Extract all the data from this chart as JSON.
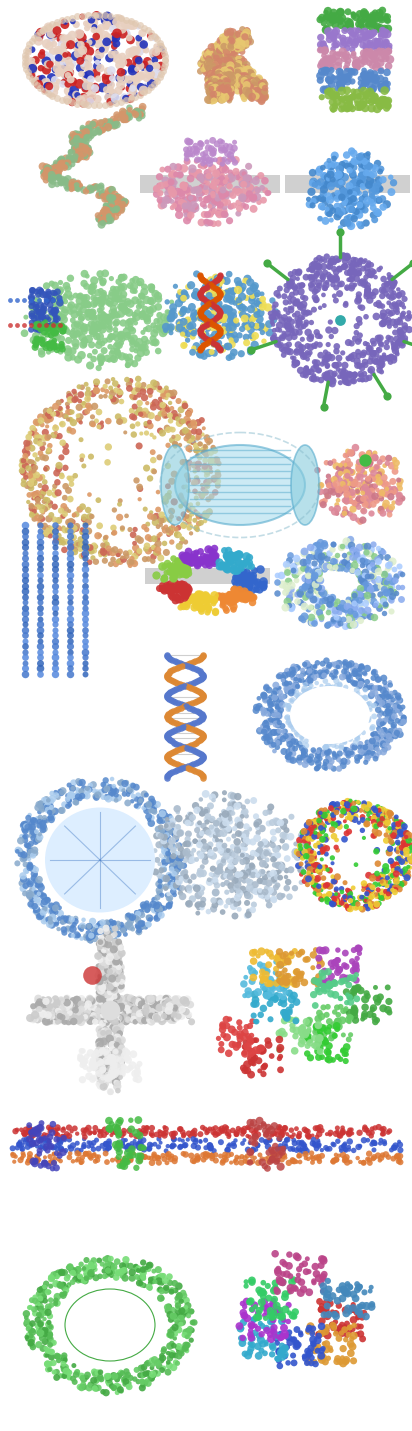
{
  "background_color": "#ffffff",
  "fig_width": 4.12,
  "fig_height": 14.31,
  "dpi": 100
}
